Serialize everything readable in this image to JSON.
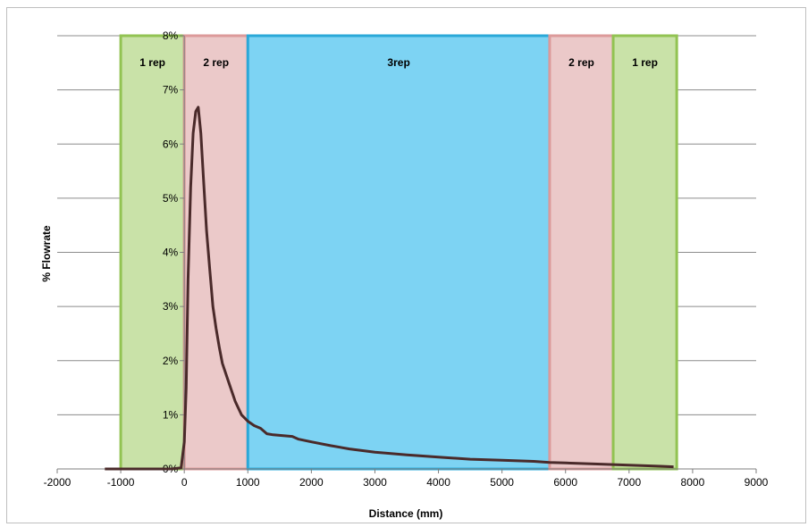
{
  "chart_data": {
    "type": "line",
    "xlabel": "Distance (mm)",
    "ylabel": "% Flowrate",
    "xlim": [
      -2000,
      9000
    ],
    "ylim": [
      0,
      8
    ],
    "x_ticks": [
      -2000,
      -1000,
      0,
      1000,
      2000,
      3000,
      4000,
      5000,
      6000,
      7000,
      8000,
      9000
    ],
    "x_tick_labels": [
      "-2000",
      "-1000",
      "0",
      "1000",
      "2000",
      "3000",
      "4000",
      "5000",
      "6000",
      "7000",
      "8000",
      "9000"
    ],
    "y_ticks": [
      0,
      1,
      2,
      3,
      4,
      5,
      6,
      7,
      8
    ],
    "y_tick_labels": [
      "0%",
      "1%",
      "2%",
      "3%",
      "4%",
      "5%",
      "6%",
      "7%",
      "8%"
    ],
    "grid": "horizontal",
    "zones": [
      {
        "label": "1 rep",
        "x_start": -1000,
        "x_end": 0,
        "fill": "#c9e2a8",
        "stroke": "#92c352"
      },
      {
        "label": "2 rep",
        "x_start": 0,
        "x_end": 1000,
        "fill": "#ebc9c9",
        "stroke": "#dc9a9a"
      },
      {
        "label": "3rep",
        "x_start": 1000,
        "x_end": 5750,
        "fill": "#7dd3f3",
        "stroke": "#2aa8d8"
      },
      {
        "label": "2 rep",
        "x_start": 5750,
        "x_end": 6750,
        "fill": "#ebc9c9",
        "stroke": "#dc9a9a"
      },
      {
        "label": "1 rep",
        "x_start": 6750,
        "x_end": 7750,
        "fill": "#c9e2a8",
        "stroke": "#92c352"
      }
    ],
    "series": [
      {
        "color": "#4a2a2a",
        "x": [
          -1250,
          -1000,
          -200,
          -50,
          0,
          30,
          60,
          100,
          140,
          180,
          220,
          260,
          300,
          350,
          400,
          450,
          500,
          550,
          600,
          700,
          800,
          900,
          1000,
          1100,
          1200,
          1300,
          1400,
          1500,
          1700,
          1800,
          2000,
          2300,
          2600,
          3000,
          3500,
          4000,
          4500,
          5000,
          5500,
          5750,
          6000,
          6500,
          6750,
          7000,
          7500,
          7700
        ],
        "y": [
          0,
          0,
          0,
          0.02,
          0.5,
          1.5,
          3.5,
          5.2,
          6.2,
          6.6,
          6.68,
          6.2,
          5.4,
          4.4,
          3.7,
          3.0,
          2.6,
          2.25,
          1.95,
          1.6,
          1.25,
          1.0,
          0.88,
          0.8,
          0.75,
          0.65,
          0.63,
          0.62,
          0.6,
          0.55,
          0.5,
          0.43,
          0.37,
          0.31,
          0.26,
          0.22,
          0.18,
          0.16,
          0.14,
          0.12,
          0.11,
          0.09,
          0.08,
          0.07,
          0.05,
          0.04
        ]
      }
    ]
  }
}
